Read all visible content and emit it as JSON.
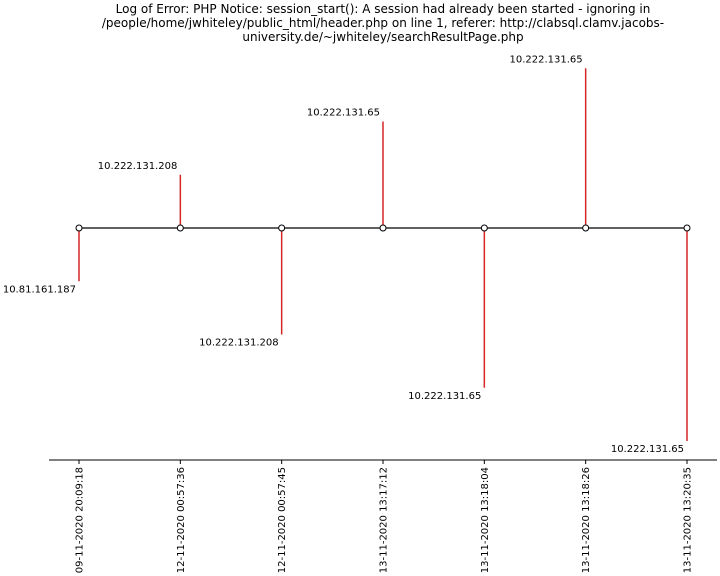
{
  "chart_data": {
    "type": "timeline",
    "title": "Log of Error: PHP Notice:  session_start(): A session had already been started - ignoring in\n/people/home/jwhiteley/public_html/header.php on line 1, referer: http://clabsql.clamv.jacobs-\nuniversity.de/~jwhiteley/searchResultPage.php",
    "xlabel": "",
    "ylabel": "",
    "grid": false,
    "categories": [
      "09-11-2020 20:09:18",
      "12-11-2020 00:57:36",
      "12-11-2020 00:57:45",
      "13-11-2020 13:17:12",
      "13-11-2020 13:18:04",
      "13-11-2020 13:18:26",
      "13-11-2020 13:20:35"
    ],
    "labels": [
      "10.81.161.187",
      "10.222.131.208",
      "10.222.131.208",
      "10.222.131.65",
      "10.222.131.65",
      "10.222.131.65",
      "10.222.131.65"
    ],
    "values": [
      -0.5,
      0.5,
      -1.0,
      1.0,
      -1.5,
      1.5,
      -2.0
    ],
    "ylim": [
      -2.2,
      1.55
    ],
    "colors": {
      "stem": "#d62728",
      "baseline": "#000000",
      "marker_fill": "#ffffff",
      "marker_edge": "#000000"
    }
  }
}
